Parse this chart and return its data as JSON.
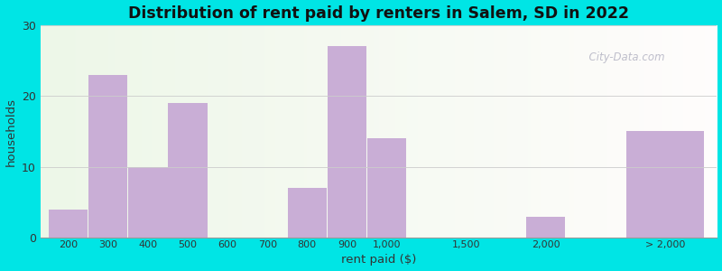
{
  "title": "Distribution of rent paid by renters in Salem, SD in 2022",
  "xlabel": "rent paid ($)",
  "ylabel": "households",
  "bar_color": "#c9aed6",
  "bg_outer": "#00e5e5",
  "ylim": [
    0,
    30
  ],
  "yticks": [
    0,
    10,
    20,
    30
  ],
  "categories": [
    "200",
    "300",
    "400",
    "500",
    "600",
    "700",
    "800",
    "900",
    "1,000",
    "1,500",
    "2,000",
    "> 2,000"
  ],
  "values": [
    4,
    23,
    10,
    19,
    0,
    0,
    7,
    27,
    14,
    0,
    3,
    15
  ],
  "bar_lefts": [
    0,
    1,
    2,
    3,
    4,
    5,
    6,
    7,
    8,
    10,
    12,
    14.5
  ],
  "bar_widths": [
    1,
    1,
    1,
    1,
    1,
    1,
    1,
    1,
    1,
    1,
    1,
    2.0
  ],
  "tick_positions": [
    0.5,
    1.5,
    2.5,
    3.5,
    4.5,
    5.5,
    6.5,
    7.5,
    8.5,
    10.5,
    12.5,
    15.5
  ],
  "xlim": [
    -0.2,
    16.8
  ],
  "watermark": "  City-Data.com"
}
